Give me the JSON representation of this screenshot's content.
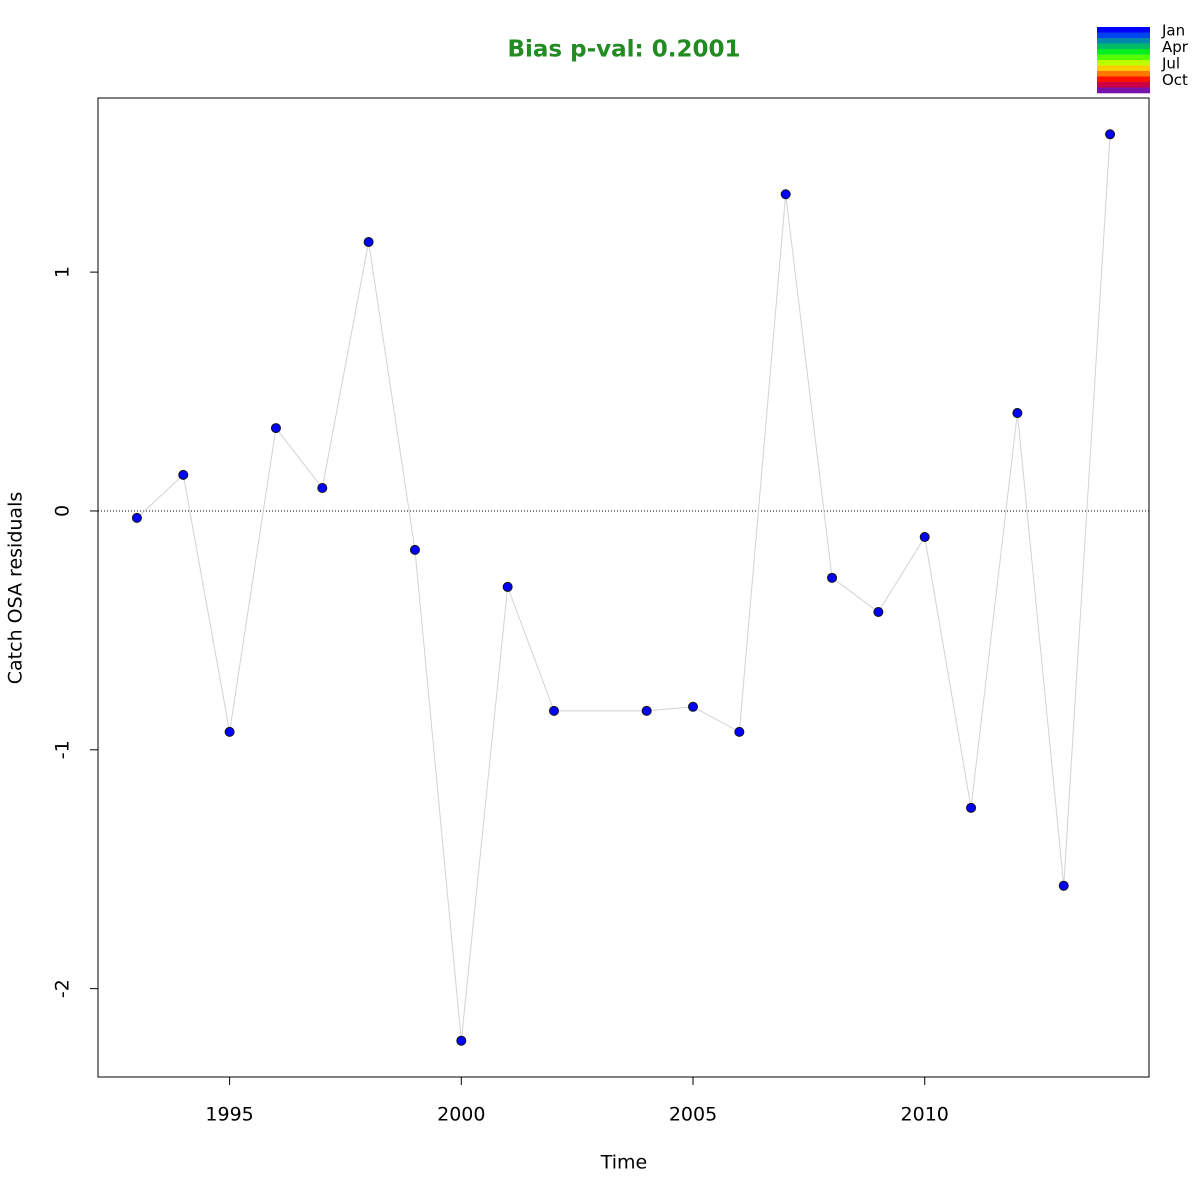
{
  "chart_data": {
    "type": "line",
    "title": "Bias p-val: 0.2001",
    "title_color": "#228b22",
    "x_label": "Time",
    "y_label": "Catch OSA residuals",
    "x": [
      1993,
      1994,
      1995,
      1996,
      1997,
      1998,
      1999,
      2000,
      2001,
      2002,
      2004,
      2005,
      2006,
      2007,
      2008,
      2009,
      2010,
      2011,
      2012,
      2013,
      2014
    ],
    "values": [
      -0.029,
      0.151,
      -0.925,
      0.347,
      0.096,
      1.126,
      -0.163,
      -2.218,
      -0.318,
      -0.837,
      -0.837,
      -0.82,
      -0.925,
      1.326,
      -0.28,
      -0.423,
      -0.109,
      -1.243,
      0.41,
      -1.569,
      1.577
    ],
    "color": "#0000ff",
    "line_color": "#d3d3d3",
    "xlim": [
      1992.16,
      2014.84
    ],
    "ylim": [
      -2.37,
      1.729
    ],
    "xticks": [
      1995,
      2000,
      2005,
      2010
    ],
    "yticks": [
      -2,
      -1,
      0,
      1
    ],
    "hline": 0,
    "legend": {
      "labels": [
        "Jan",
        "Apr",
        "Jul",
        "Oct"
      ],
      "colors": [
        "#0000ff",
        "#0044ee",
        "#0088aa",
        "#00bb66",
        "#00ee22",
        "#55ff00",
        "#bbff00",
        "#ffcc00",
        "#ff7700",
        "#ff1100",
        "#cc0044",
        "#7711aa"
      ]
    }
  }
}
